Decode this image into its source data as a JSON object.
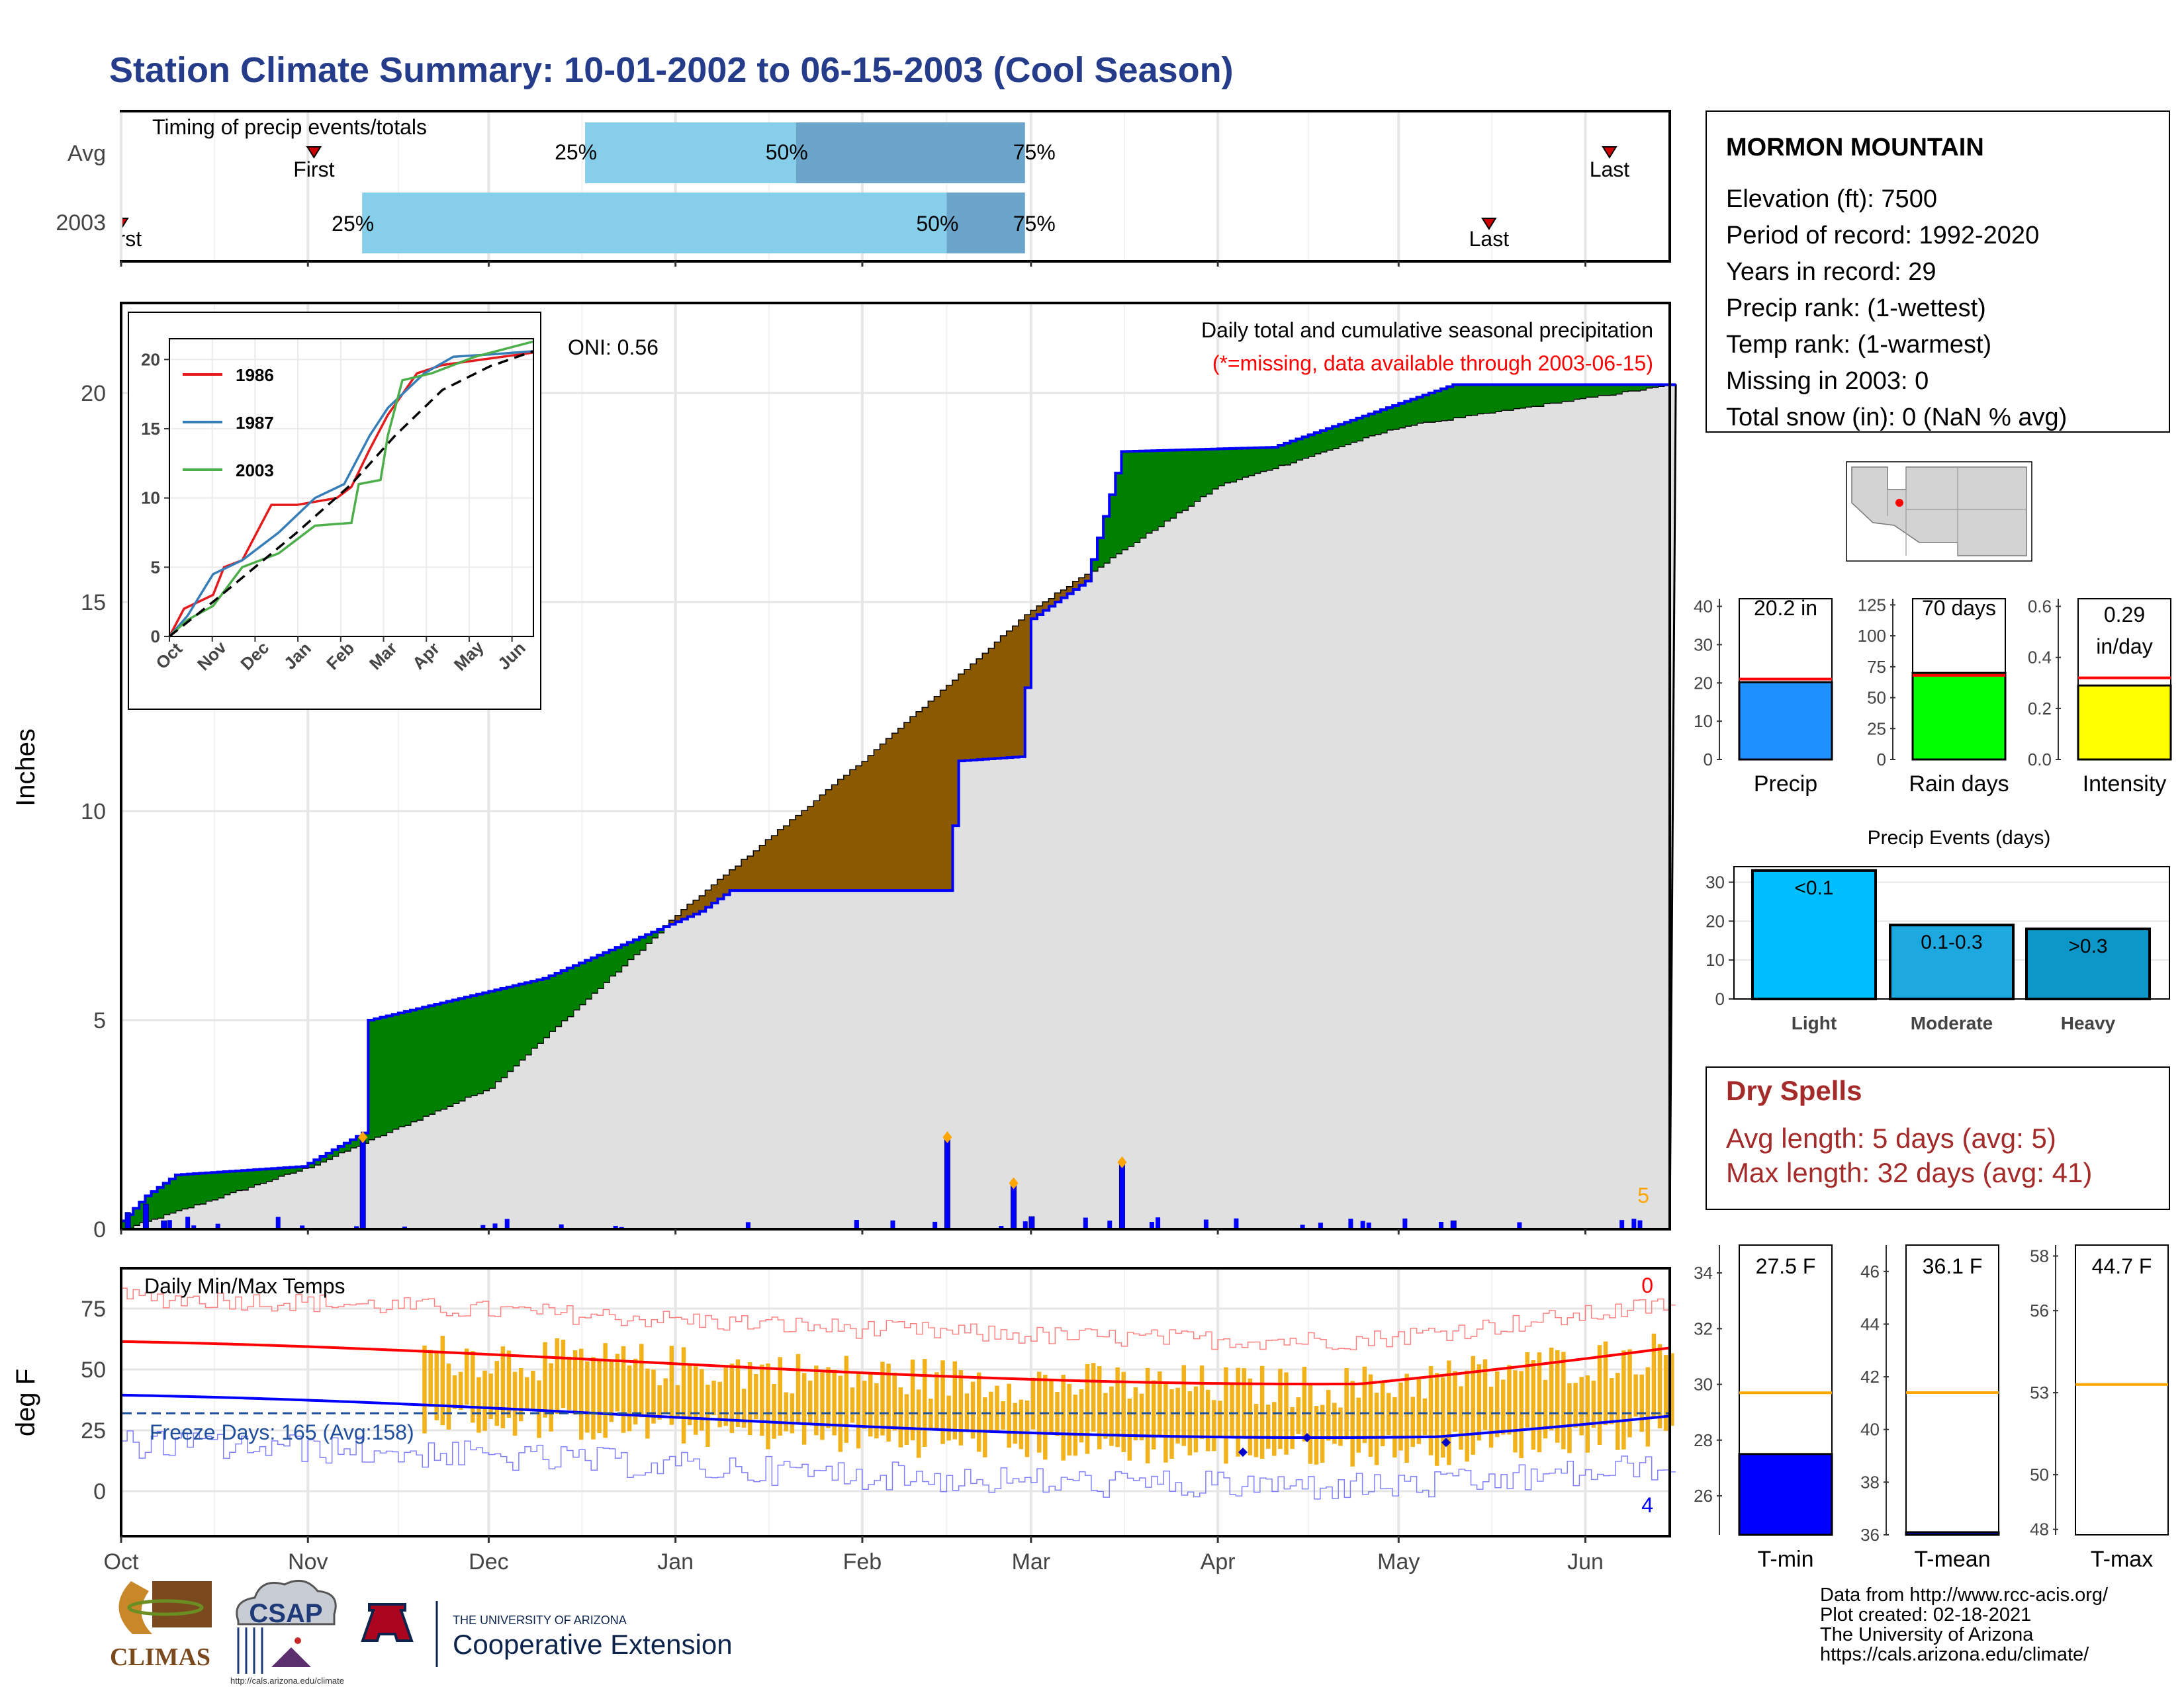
{
  "title": "Station Climate Summary: 10-01-2002 to 06-15-2003 (Cool Season)",
  "colors": {
    "title": "#253C8A",
    "precip_green": "#008000",
    "precip_brown": "#8B5A00",
    "observed_line": "#0000FF",
    "avg_fill": "#E0E0E0",
    "timing_light": "#87CEEB",
    "timing_dark": "#6BA5CC",
    "temp_bar": "#F2B21B",
    "dry_spell_red": "#A52A2A"
  },
  "timing": {
    "title": "Timing of precip events/totals",
    "rows": [
      {
        "label": "Avg",
        "first_label": "First",
        "last_label": "Last",
        "first_date": "2002-11-02",
        "last_date": "2003-06-05",
        "p25_date": "2002-12-17",
        "p50_date": "2003-01-21",
        "p75_date": "2003-02-28",
        "p25": "25%",
        "p50": "50%",
        "p75": "75%"
      },
      {
        "label": "2003",
        "first_label": "First",
        "last_label": "Last",
        "first_date": "2002-10-01",
        "last_date": "2003-05-16",
        "p25_date": "2002-11-10",
        "p50_date": "2003-02-15",
        "p75_date": "2003-02-28",
        "p25": "25%",
        "p50": "50%",
        "p75": "75%"
      }
    ]
  },
  "main": {
    "ylabel": "Inches",
    "yticks": [
      "0",
      "5",
      "10",
      "15",
      "20"
    ],
    "oni": "ONI: 0.56",
    "header": "Daily total and cumulative seasonal precipitation",
    "missing_note": "(*=missing, data available through 2003-06-15)",
    "corner_count": "5"
  },
  "inset": {
    "yticks": [
      "0",
      "5",
      "10",
      "15",
      "20"
    ],
    "xticks": [
      "Oct",
      "Nov",
      "Dec",
      "Jan",
      "Feb",
      "Mar",
      "Apr",
      "May",
      "Jun"
    ],
    "legend": [
      {
        "name": "1986",
        "color": "#E41A1C"
      },
      {
        "name": "1987",
        "color": "#377EB8"
      },
      {
        "name": "2003",
        "color": "#4DAF4A"
      }
    ]
  },
  "temps": {
    "title": "Daily Min/Max Temps",
    "ylabel": "deg F",
    "yticks": [
      "0",
      "25",
      "50",
      "75"
    ],
    "freeze_days": "Freeze Days: 165 (Avg:158)",
    "max_count": "0",
    "min_count": "4"
  },
  "xaxis_months": [
    "Oct",
    "Nov",
    "Dec",
    "Jan",
    "Feb",
    "Mar",
    "Apr",
    "May",
    "Jun"
  ],
  "station": {
    "name": "MORMON MOUNTAIN",
    "lines": [
      "Elevation (ft): 7500",
      "Period of record: 1992-2020",
      "Years in record: 29",
      "Precip rank:  (1-wettest)",
      "Temp rank:  (1-warmest)",
      "Missing in 2003: 0",
      "Total snow (in): 0 (NaN % avg)"
    ]
  },
  "summary_bars": [
    {
      "label": "Precip",
      "value_text": "20.2 in",
      "value": 20.2,
      "avg": 21,
      "ymax": 42,
      "yticks": [
        "0",
        "10",
        "20",
        "30",
        "40"
      ],
      "color": "#1E90FF"
    },
    {
      "label": "Rain days",
      "value_text": "70 days",
      "value": 70,
      "avg": 68,
      "ymax": 130,
      "yticks": [
        "0",
        "25",
        "50",
        "75",
        "100",
        "125"
      ],
      "color": "#00FF00"
    },
    {
      "label": "Intensity",
      "value_text1": "0.29",
      "value_text2": "in/day",
      "value": 0.29,
      "avg": 0.32,
      "ymax": 0.63,
      "yticks": [
        "0.0",
        "0.2",
        "0.4",
        "0.6"
      ],
      "color": "#FFFF00"
    }
  ],
  "precip_events": {
    "title": "Precip Events (days)",
    "yticks": [
      "0",
      "10",
      "20",
      "30"
    ],
    "bars": [
      {
        "category": "Light",
        "label": "<0.1",
        "value": 33,
        "color": "#00BFFF"
      },
      {
        "category": "Moderate",
        "label": "0.1-0.3",
        "value": 19,
        "color": "#1EA8E0"
      },
      {
        "category": "Heavy",
        "label": ">0.3",
        "value": 18,
        "color": "#0D97C9"
      }
    ]
  },
  "dry_spells": {
    "title": "Dry Spells",
    "avg_line": "Avg length: 5 days (avg: 5)",
    "max_line": "Max length: 32 days (avg: 41)"
  },
  "temp_summary": [
    {
      "label": "T-min",
      "value_text": "27.5 F",
      "value": 27.5,
      "avg": 29.7,
      "ymin": 24.6,
      "ymax": 35,
      "yticks": [
        "26",
        "28",
        "30",
        "32",
        "34"
      ],
      "color": "#0000FF"
    },
    {
      "label": "T-mean",
      "value_text": "36.1 F",
      "value": 36.1,
      "avg": 41.4,
      "ymin": 36,
      "ymax": 47,
      "yticks": [
        "36",
        "38",
        "40",
        "42",
        "44",
        "46"
      ],
      "color": "#0000FF"
    },
    {
      "label": "T-max",
      "value_text": "44.7 F",
      "value": 44.7,
      "avg": 53.3,
      "ymin": 47.8,
      "ymax": 58.4,
      "yticks": [
        "48",
        "50",
        "53",
        "56",
        "58"
      ],
      "color": "#0000FF"
    }
  ],
  "footer": {
    "credits": [
      "Data from http://www.rcc-acis.org/",
      "Plot created: 02-18-2021",
      "The University of Arizona",
      "https://cals.arizona.edu/climate/"
    ],
    "climas_logo": "CLIMAS",
    "csap_logo": "CSAP",
    "csap_url": "http://cals.arizona.edu/climate",
    "ua_small": "THE UNIVERSITY OF ARIZONA",
    "ua_big": "Cooperative Extension"
  },
  "chart_data": {
    "type": "area",
    "title": "Daily total and cumulative seasonal precipitation",
    "ylabel": "Inches",
    "xlim": [
      "2002-10-01",
      "2003-06-15"
    ],
    "ylim": [
      0,
      22
    ],
    "series": [
      {
        "name": "observed",
        "x": [
          "2002-10-01",
          "2002-10-05",
          "2002-10-10",
          "2002-10-31",
          "2002-11-10",
          "2002-11-11",
          "2002-12-10",
          "2003-01-05",
          "2003-01-10",
          "2003-02-15",
          "2003-02-17",
          "2003-02-27",
          "2003-03-01",
          "2003-03-10",
          "2003-03-16",
          "2003-04-10",
          "2003-05-10",
          "2003-06-15"
        ],
        "values": [
          0.2,
          0.8,
          1.3,
          1.5,
          2.3,
          5.0,
          6.0,
          7.6,
          8.1,
          8.1,
          11.2,
          11.3,
          14.6,
          15.5,
          18.6,
          18.7,
          20.2,
          20.2
        ]
      },
      {
        "name": "average",
        "x": [
          "2002-10-01",
          "2002-11-01",
          "2002-12-01",
          "2003-01-01",
          "2003-02-01",
          "2003-03-01",
          "2003-04-01",
          "2003-05-01",
          "2003-06-15"
        ],
        "values": [
          0.0,
          1.5,
          3.4,
          7.5,
          11.2,
          14.8,
          17.8,
          19.2,
          20.2
        ]
      }
    ],
    "daily_totals": {
      "x": [
        "2002-10-02",
        "2002-10-05",
        "2002-10-08",
        "2002-11-10",
        "2003-02-15",
        "2003-02-26",
        "2003-03-16",
        "2003-03-01",
        "2003-05-10"
      ],
      "values": [
        0.4,
        0.6,
        0.2,
        2.2,
        2.2,
        1.1,
        1.6,
        0.3,
        0.2
      ]
    }
  }
}
